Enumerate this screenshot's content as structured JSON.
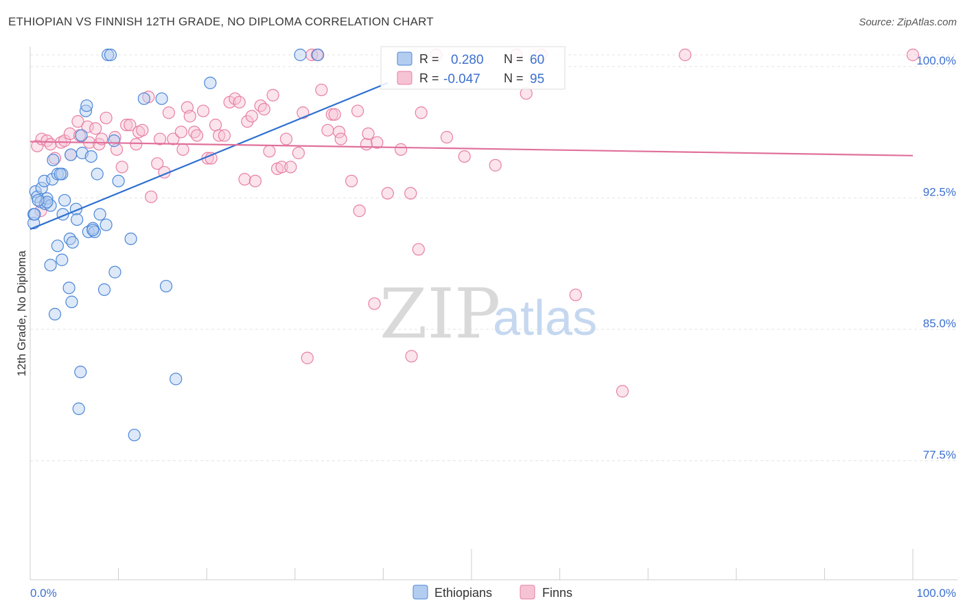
{
  "title": "ETHIOPIAN VS FINNISH 12TH GRADE, NO DIPLOMA CORRELATION CHART",
  "source": "Source: ZipAtlas.com",
  "watermark": {
    "zip": "ZIP",
    "atlas": "atlas"
  },
  "legend": {
    "ethiopians": {
      "r_label": "R =",
      "r_value": "0.280",
      "n_label": "N =",
      "n_value": "60"
    },
    "finns": {
      "r_label": "R =",
      "r_value": "-0.047",
      "n_label": "N =",
      "n_value": "95"
    }
  },
  "bottom_legend": {
    "ethiopians": "Ethiopians",
    "finns": "Finns"
  },
  "chart_data": {
    "type": "scatter",
    "title": "ETHIOPIAN VS FINNISH 12TH GRADE, NO DIPLOMA CORRELATION CHART",
    "xlabel": "",
    "ylabel": "12th Grade, No Diploma",
    "xlim": [
      0,
      100
    ],
    "ylim": [
      70,
      101.5
    ],
    "x_tick_labels": {
      "left": "0.0%",
      "right": "100.0%"
    },
    "y_ticks": [
      {
        "value": 100.0,
        "label": "100.0%"
      },
      {
        "value": 92.5,
        "label": "92.5%"
      },
      {
        "value": 85.0,
        "label": "85.0%"
      },
      {
        "value": 77.5,
        "label": "77.5%"
      }
    ],
    "colors": {
      "ethiopians": "#4a86d8",
      "finns": "#e87ea3",
      "ethiopians_fill": "#b3cdf0",
      "finns_fill": "#f6c3d5"
    },
    "trend_lines": [
      {
        "series": "Ethiopians",
        "x": [
          0,
          40.5
        ],
        "y": [
          90.05,
          98.4
        ]
      },
      {
        "series": "Finns",
        "x": [
          0,
          100
        ],
        "y": [
          95.05,
          94.25
        ]
      }
    ],
    "series": [
      {
        "name": "Ethiopians",
        "points": [
          [
            0.4,
            90.4
          ],
          [
            0.4,
            90.9
          ],
          [
            0.6,
            92.2
          ],
          [
            0.8,
            91.9
          ],
          [
            1.2,
            91.6
          ],
          [
            1.3,
            92.4
          ],
          [
            1.6,
            92.8
          ],
          [
            1.7,
            91.5
          ],
          [
            1.9,
            91.8
          ],
          [
            2.3,
            91.4
          ],
          [
            2.3,
            88.0
          ],
          [
            2.5,
            92.9
          ],
          [
            2.6,
            94.0
          ],
          [
            2.8,
            85.2
          ],
          [
            3.1,
            93.2
          ],
          [
            3.1,
            89.1
          ],
          [
            3.6,
            93.2
          ],
          [
            3.6,
            88.3
          ],
          [
            3.7,
            90.9
          ],
          [
            3.9,
            91.7
          ],
          [
            4.4,
            86.7
          ],
          [
            4.5,
            89.5
          ],
          [
            4.6,
            94.3
          ],
          [
            4.7,
            85.9
          ],
          [
            4.8,
            89.3
          ],
          [
            5.2,
            91.2
          ],
          [
            5.3,
            90.6
          ],
          [
            5.5,
            79.8
          ],
          [
            5.7,
            81.9
          ],
          [
            5.8,
            95.4
          ],
          [
            5.9,
            94.4
          ],
          [
            6.3,
            96.8
          ],
          [
            6.4,
            97.1
          ],
          [
            6.6,
            89.9
          ],
          [
            6.9,
            94.2
          ],
          [
            7.1,
            90.1
          ],
          [
            7.3,
            89.9
          ],
          [
            7.6,
            93.2
          ],
          [
            7.9,
            90.9
          ],
          [
            8.4,
            86.6
          ],
          [
            8.6,
            90.3
          ],
          [
            8.8,
            100.0
          ],
          [
            9.1,
            100.0
          ],
          [
            9.5,
            95.1
          ],
          [
            9.6,
            87.6
          ],
          [
            10.0,
            92.8
          ],
          [
            11.4,
            89.5
          ],
          [
            11.8,
            78.3
          ],
          [
            12.9,
            97.5
          ],
          [
            14.9,
            97.5
          ],
          [
            15.4,
            86.8
          ],
          [
            16.5,
            81.5
          ],
          [
            20.4,
            98.4
          ],
          [
            30.6,
            100.0
          ],
          [
            32.6,
            100.0
          ],
          [
            0.5,
            90.9
          ],
          [
            1.9,
            91.6
          ],
          [
            3.4,
            93.2
          ],
          [
            7.1,
            90.0
          ],
          [
            0.9,
            91.7
          ]
        ]
      },
      {
        "name": "Finns",
        "points": [
          [
            0.8,
            94.8
          ],
          [
            1.2,
            91.1
          ],
          [
            1.3,
            95.2
          ],
          [
            1.9,
            95.1
          ],
          [
            2.3,
            94.9
          ],
          [
            2.8,
            94.1
          ],
          [
            3.5,
            95.0
          ],
          [
            3.9,
            95.1
          ],
          [
            4.5,
            95.5
          ],
          [
            4.6,
            94.3
          ],
          [
            5.4,
            96.2
          ],
          [
            5.6,
            95.4
          ],
          [
            6.5,
            95.9
          ],
          [
            6.7,
            95.0
          ],
          [
            7.4,
            95.8
          ],
          [
            7.8,
            94.9
          ],
          [
            8.1,
            95.2
          ],
          [
            8.6,
            96.4
          ],
          [
            9.6,
            95.3
          ],
          [
            9.8,
            94.6
          ],
          [
            10.4,
            93.6
          ],
          [
            10.9,
            96.0
          ],
          [
            11.3,
            96.0
          ],
          [
            12.0,
            94.9
          ],
          [
            12.3,
            95.6
          ],
          [
            12.7,
            95.7
          ],
          [
            13.4,
            97.6
          ],
          [
            13.7,
            91.9
          ],
          [
            14.4,
            93.8
          ],
          [
            14.7,
            95.2
          ],
          [
            15.2,
            93.3
          ],
          [
            15.7,
            96.7
          ],
          [
            16.2,
            95.2
          ],
          [
            17.1,
            95.6
          ],
          [
            17.3,
            94.6
          ],
          [
            17.8,
            97.0
          ],
          [
            18.1,
            96.5
          ],
          [
            18.6,
            95.6
          ],
          [
            18.9,
            95.4
          ],
          [
            19.6,
            96.8
          ],
          [
            20.1,
            94.1
          ],
          [
            20.5,
            94.1
          ],
          [
            21.0,
            96.0
          ],
          [
            21.4,
            95.4
          ],
          [
            22.0,
            95.4
          ],
          [
            22.6,
            97.3
          ],
          [
            23.2,
            97.5
          ],
          [
            23.7,
            97.3
          ],
          [
            24.3,
            92.9
          ],
          [
            24.6,
            96.2
          ],
          [
            25.1,
            96.5
          ],
          [
            25.5,
            92.8
          ],
          [
            26.1,
            97.1
          ],
          [
            26.5,
            96.9
          ],
          [
            27.1,
            94.5
          ],
          [
            27.5,
            97.7
          ],
          [
            28.0,
            93.5
          ],
          [
            28.5,
            93.6
          ],
          [
            29.0,
            95.2
          ],
          [
            29.5,
            93.6
          ],
          [
            30.4,
            94.4
          ],
          [
            30.9,
            96.7
          ],
          [
            31.4,
            82.7
          ],
          [
            31.9,
            100.0
          ],
          [
            32.5,
            100.0
          ],
          [
            33.0,
            98.0
          ],
          [
            33.7,
            95.7
          ],
          [
            34.2,
            96.6
          ],
          [
            34.5,
            96.6
          ],
          [
            35.0,
            95.6
          ],
          [
            35.2,
            95.2
          ],
          [
            36.4,
            92.8
          ],
          [
            37.1,
            96.8
          ],
          [
            37.3,
            91.1
          ],
          [
            38.1,
            94.9
          ],
          [
            38.3,
            95.5
          ],
          [
            39.0,
            85.8
          ],
          [
            39.3,
            95.0
          ],
          [
            40.5,
            92.1
          ],
          [
            42.0,
            94.6
          ],
          [
            43.1,
            92.1
          ],
          [
            43.2,
            82.8
          ],
          [
            44.0,
            88.9
          ],
          [
            44.3,
            96.7
          ],
          [
            46.0,
            100.0
          ],
          [
            47.2,
            95.3
          ],
          [
            49.2,
            94.2
          ],
          [
            52.7,
            93.7
          ],
          [
            55.1,
            100.0
          ],
          [
            56.2,
            97.8
          ],
          [
            57.9,
            100.0
          ],
          [
            61.8,
            86.3
          ],
          [
            67.1,
            80.8
          ],
          [
            74.2,
            100.0
          ],
          [
            100.0,
            100.0
          ]
        ]
      }
    ]
  }
}
